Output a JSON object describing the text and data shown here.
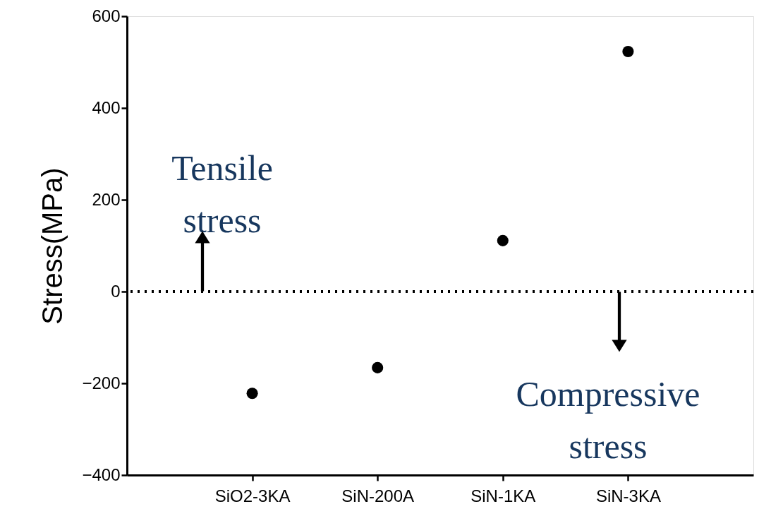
{
  "chart_data": {
    "type": "scatter",
    "ylabel": "Stress(MPa)",
    "categories": [
      "SiO2-3KA",
      "SiN-200A",
      "SiN-1KA",
      "SiN-3KA"
    ],
    "series": [
      {
        "color": "#000000",
        "values": [
          -222,
          -166,
          111,
          523
        ]
      }
    ],
    "ylim": [
      -400,
      600
    ],
    "yticks": [
      -400,
      -200,
      0,
      200,
      400,
      600
    ],
    "marker": "circle",
    "grid": false,
    "legend": false,
    "ref_lines": [
      {
        "axis": "y",
        "value": 0,
        "color": "#000000",
        "line_style": "dotted"
      }
    ],
    "annotations": [
      {
        "text": "Tensile stress",
        "y": 0
      },
      {
        "text": "Compressive stress",
        "y": 0
      }
    ]
  }
}
